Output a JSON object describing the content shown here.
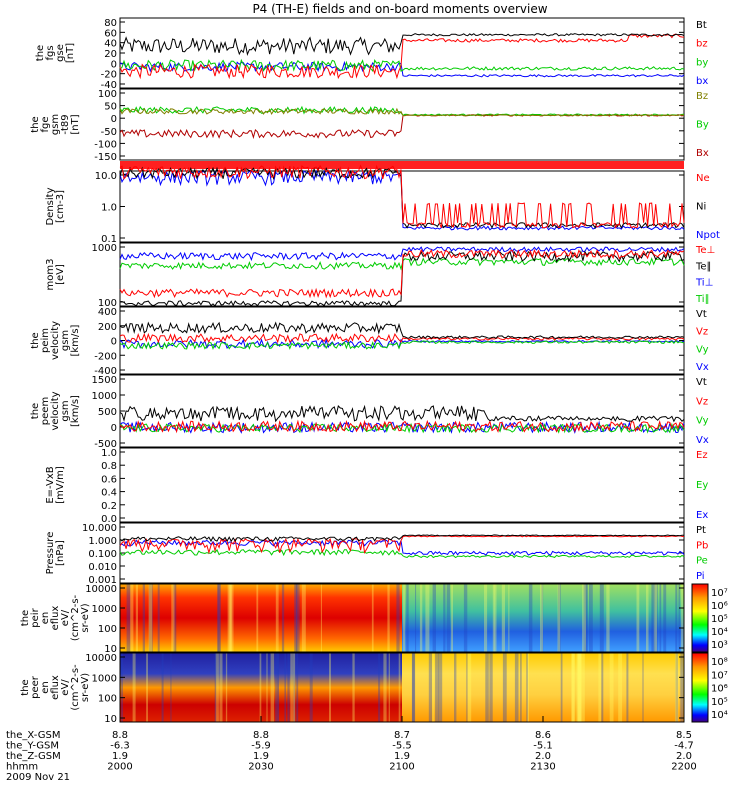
{
  "title": "P4 (TH-E) fields and on-board moments overview",
  "chart_data": {
    "type": "line",
    "x": {
      "ticks": [
        "2000",
        "2030",
        "2100",
        "2130",
        "2200"
      ],
      "range": [
        "2000",
        "2200"
      ]
    },
    "panels": [
      {
        "id": "fgs_gse",
        "ylabel": [
          "the",
          "fgs",
          "gse",
          "[nT]"
        ],
        "yticks": [
          "80",
          "60",
          "40",
          "20",
          "0",
          "-20",
          "-40"
        ],
        "ylim": [
          -40,
          85
        ],
        "legend": [
          {
            "name": "Bt",
            "color": "#000000"
          },
          {
            "name": "bz",
            "color": "#ff0000"
          },
          {
            "name": "by",
            "color": "#00cc00"
          },
          {
            "name": "bx",
            "color": "#0000ff"
          }
        ]
      },
      {
        "id": "fge_gsm",
        "ylabel": [
          "the",
          "fge",
          "gsm",
          "-t89",
          "[nT]"
        ],
        "yticks": [
          "100",
          "50",
          "0",
          "-50",
          "-100",
          "-150"
        ],
        "ylim": [
          -170,
          100
        ],
        "legend": [
          {
            "name": "Bz",
            "color": "#808000"
          },
          {
            "name": "By",
            "color": "#00cc00"
          },
          {
            "name": "Bx",
            "color": "#b00000"
          }
        ]
      },
      {
        "id": "density",
        "ylabel": [
          "Density",
          "[cm-3]"
        ],
        "yticks": [
          "10.0",
          "1.0",
          "0.1"
        ],
        "log": true,
        "ylim": [
          0.1,
          10.0
        ],
        "legend": [
          {
            "name": "Ne",
            "color": "#ff0000"
          },
          {
            "name": "Ni",
            "color": "#000000"
          },
          {
            "name": "Npot",
            "color": "#0000ff"
          }
        ]
      },
      {
        "id": "temperature",
        "ylabel": [
          "mom3",
          "[eV]"
        ],
        "yticks": [
          "1000",
          "100"
        ],
        "log": true,
        "ylim": [
          50,
          3000
        ],
        "legend": [
          {
            "name": "Te⊥",
            "color": "#ff0000"
          },
          {
            "name": "Te∥",
            "color": "#000000"
          },
          {
            "name": "Ti⊥",
            "color": "#0000ff"
          },
          {
            "name": "Ti∥",
            "color": "#00cc00"
          }
        ]
      },
      {
        "id": "peim_velocity",
        "ylabel": [
          "the",
          "peim",
          "velocity",
          "gsm",
          "[km/s]"
        ],
        "yticks": [
          "400",
          "200",
          "0",
          "-200",
          "-400"
        ],
        "ylim": [
          -400,
          400
        ],
        "legend": [
          {
            "name": "Vt",
            "color": "#000000"
          },
          {
            "name": "Vz",
            "color": "#ff0000"
          },
          {
            "name": "Vy",
            "color": "#00cc00"
          },
          {
            "name": "Vx",
            "color": "#0000ff"
          }
        ]
      },
      {
        "id": "peem_velocity",
        "ylabel": [
          "the",
          "peem",
          "velocity",
          "gsm",
          "[km/s]"
        ],
        "yticks": [
          "1500",
          "1000",
          "500",
          "0",
          "-500"
        ],
        "ylim": [
          -600,
          1500
        ],
        "legend": [
          {
            "name": "Vt",
            "color": "#000000"
          },
          {
            "name": "Vz",
            "color": "#ff0000"
          },
          {
            "name": "Vy",
            "color": "#00cc00"
          },
          {
            "name": "Vx",
            "color": "#0000ff"
          }
        ]
      },
      {
        "id": "efield",
        "ylabel": [
          "E=-VxB",
          "[mV/m]"
        ],
        "yticks": [
          "1.0",
          "0.8",
          "0.6",
          "0.4",
          "0.2",
          "0.0"
        ],
        "ylim": [
          0,
          1.0
        ],
        "legend": [
          {
            "name": "Ez",
            "color": "#ff0000"
          },
          {
            "name": "Ey",
            "color": "#00cc00"
          },
          {
            "name": "Ex",
            "color": "#0000ff"
          }
        ]
      },
      {
        "id": "pressure",
        "ylabel": [
          "Pressure",
          "[nPa]"
        ],
        "yticks": [
          "10.000",
          "1.000",
          "0.100",
          "0.010",
          "0.001"
        ],
        "log": true,
        "ylim": [
          0.001,
          10.0
        ],
        "legend": [
          {
            "name": "Pt",
            "color": "#000000"
          },
          {
            "name": "Pb",
            "color": "#ff0000"
          },
          {
            "name": "Pe",
            "color": "#00cc00"
          },
          {
            "name": "Pi",
            "color": "#0000ff"
          }
        ]
      },
      {
        "id": "peir_eflux",
        "ylabel": [
          "the",
          "peir",
          "en",
          "eflux",
          "eV/",
          "(cm^2-s-",
          "sr-eV)"
        ],
        "yticks": [
          "10000",
          "1000",
          "100",
          "10"
        ],
        "log": true,
        "spectrogram": true,
        "colorbar": [
          "10⁷",
          "10⁶",
          "10⁵",
          "10⁴",
          "10³"
        ]
      },
      {
        "id": "peer_eflux",
        "ylabel": [
          "the",
          "peer",
          "en",
          "eflux",
          "eV/",
          "(cm^2-s-",
          "sr-eV)"
        ],
        "yticks": [
          "10000",
          "1000",
          "100",
          "10"
        ],
        "log": true,
        "spectrogram": true,
        "colorbar": [
          "10⁸",
          "10⁷",
          "10⁶",
          "10⁵",
          "10⁴"
        ]
      }
    ],
    "ephemeris": {
      "labels": [
        "the_X-GSM",
        "the_Y-GSM",
        "the_Z-GSM",
        "hhmm",
        "2009 Nov 21"
      ],
      "columns": [
        [
          "8.8",
          "-6.3",
          "1.9",
          "2000"
        ],
        [
          "8.8",
          "-5.9",
          "1.9",
          "2030"
        ],
        [
          "8.7",
          "-5.5",
          "1.9",
          "2100"
        ],
        [
          "8.6",
          "-5.1",
          "2.0",
          "2130"
        ],
        [
          "8.5",
          "-4.7",
          "2.0",
          "2200"
        ]
      ]
    }
  }
}
